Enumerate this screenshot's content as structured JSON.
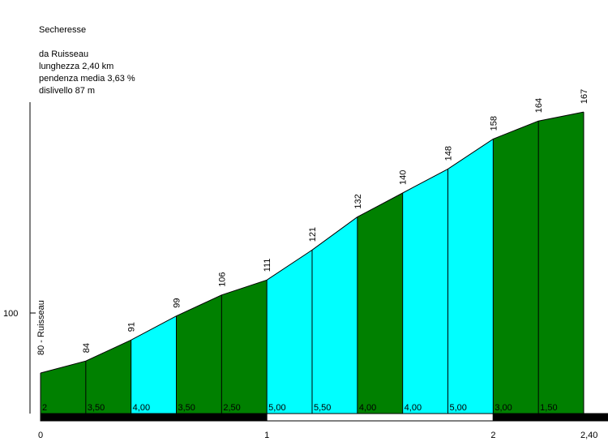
{
  "info": {
    "title": "Secheresse",
    "from": "da Ruisseau",
    "length": "lunghezza 2,40 km",
    "avg_grade": "pendenza media 3,63 %",
    "elevation_gain": "dislivello 87 m"
  },
  "chart_data": {
    "type": "area",
    "xlim": [
      0,
      2.4
    ],
    "ylim": [
      65,
      195
    ],
    "x_tick_labels": [
      {
        "x": 0,
        "label": "0"
      },
      {
        "x": 1,
        "label": "1"
      },
      {
        "x": 2,
        "label": "2"
      },
      {
        "x": 2.4,
        "label": "2,40"
      }
    ],
    "y_tick_labels": [
      {
        "y": 100,
        "label": "100"
      }
    ],
    "start_label": "80 - Ruisseau",
    "points": [
      {
        "x": 0.0,
        "y": 80,
        "label": ""
      },
      {
        "x": 0.2,
        "y": 84,
        "label": "84"
      },
      {
        "x": 0.4,
        "y": 91,
        "label": "91"
      },
      {
        "x": 0.6,
        "y": 99,
        "label": "99"
      },
      {
        "x": 0.8,
        "y": 106,
        "label": "106"
      },
      {
        "x": 1.0,
        "y": 111,
        "label": "111"
      },
      {
        "x": 1.2,
        "y": 121,
        "label": "121"
      },
      {
        "x": 1.4,
        "y": 132,
        "label": "132"
      },
      {
        "x": 1.6,
        "y": 140,
        "label": "140"
      },
      {
        "x": 1.8,
        "y": 148,
        "label": "148"
      },
      {
        "x": 2.0,
        "y": 158,
        "label": "158"
      },
      {
        "x": 2.2,
        "y": 164,
        "label": "164"
      },
      {
        "x": 2.4,
        "y": 167,
        "label": "167"
      }
    ],
    "segments": [
      {
        "grade": "2",
        "color": "#008000"
      },
      {
        "grade": "3,50",
        "color": "#008000"
      },
      {
        "grade": "4,00",
        "color": "#00ffff"
      },
      {
        "grade": "3,50",
        "color": "#008000"
      },
      {
        "grade": "2,50",
        "color": "#008000"
      },
      {
        "grade": "5,00",
        "color": "#00ffff"
      },
      {
        "grade": "5,50",
        "color": "#00ffff"
      },
      {
        "grade": "4,00",
        "color": "#008000"
      },
      {
        "grade": "4,00",
        "color": "#00ffff"
      },
      {
        "grade": "5,00",
        "color": "#00ffff"
      },
      {
        "grade": "3,00",
        "color": "#008000"
      },
      {
        "grade": "1,50",
        "color": "#008000"
      }
    ],
    "km_bar_colors": [
      "#000000",
      "#ffffff",
      "#000000"
    ]
  }
}
